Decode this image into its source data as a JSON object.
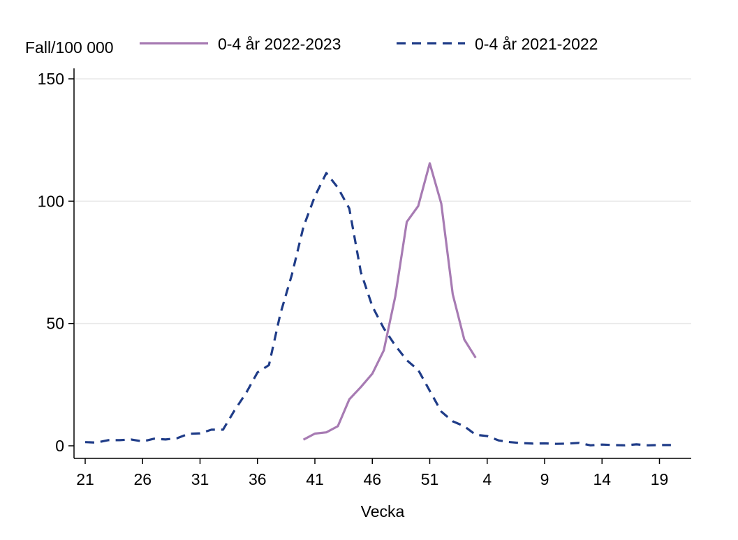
{
  "chart_data": {
    "type": "line",
    "ylabel": "Fall/100 000",
    "xlabel": "Vecka",
    "ylim": [
      0,
      150
    ],
    "yticks": [
      0,
      50,
      100,
      150
    ],
    "xticks": [
      "21",
      "26",
      "31",
      "36",
      "41",
      "46",
      "51",
      "4",
      "9",
      "14",
      "19"
    ],
    "grid": "horizontal",
    "legend_position": "top",
    "weeks": [
      "21",
      "22",
      "23",
      "24",
      "25",
      "26",
      "27",
      "28",
      "29",
      "30",
      "31",
      "32",
      "33",
      "34",
      "35",
      "36",
      "37",
      "38",
      "39",
      "40",
      "41",
      "42",
      "43",
      "44",
      "45",
      "46",
      "47",
      "48",
      "49",
      "50",
      "51",
      "52",
      "1",
      "2",
      "3",
      "4",
      "5",
      "6",
      "7",
      "8",
      "9",
      "10",
      "11",
      "12",
      "13",
      "14",
      "15",
      "16",
      "17",
      "18",
      "19",
      "20"
    ],
    "series": [
      {
        "name": "0-4 år 2022-2023",
        "color": "#A77BB3",
        "dash": "solid",
        "values": [
          null,
          null,
          null,
          null,
          null,
          null,
          null,
          null,
          null,
          null,
          null,
          null,
          null,
          null,
          null,
          null,
          null,
          null,
          null,
          2.5,
          5,
          5.5,
          8,
          19,
          24,
          29.5,
          39,
          61,
          91.5,
          98,
          115.5,
          99,
          62,
          43.5,
          36,
          null,
          null,
          null,
          null,
          null,
          null,
          null,
          null,
          null,
          null,
          null,
          null,
          null,
          null,
          null,
          null,
          null
        ]
      },
      {
        "name": "0-4 år 2021-2022",
        "color": "#1F3C88",
        "dash": "dashed",
        "values": [
          1.5,
          1.3,
          2.3,
          2.3,
          2.6,
          1.8,
          2.9,
          2.6,
          3.1,
          4.9,
          5.1,
          6.6,
          6.6,
          14.5,
          21.5,
          30,
          33,
          54,
          70,
          89.5,
          102,
          111.5,
          105.5,
          97,
          71,
          57,
          48,
          41,
          35,
          31,
          22.5,
          14,
          10,
          8,
          4.5,
          4,
          2.2,
          1.5,
          1.1,
          0.9,
          1,
          0.8,
          0.9,
          1.2,
          0.2,
          0.5,
          0.3,
          0.2,
          0.6,
          0.2,
          0.3,
          0.3
        ]
      }
    ]
  }
}
